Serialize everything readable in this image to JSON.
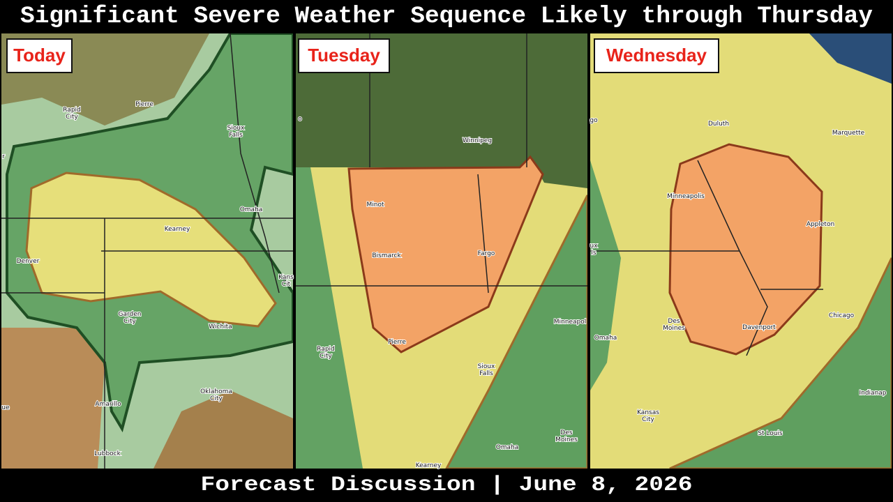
{
  "title": "Significant Severe Weather Sequence Likely through Thursday",
  "footer": "Forecast Discussion | June 8, 2026",
  "panels": [
    {
      "label": "Today",
      "cities": [
        [
          "Pierre"
        ],
        [
          "Rapid",
          "City"
        ],
        [
          "Sioux",
          "Falls"
        ],
        [
          "Omaha"
        ],
        [
          "Kearney"
        ],
        [
          "Denver"
        ],
        [
          "Kans",
          "Cit"
        ],
        [
          "Garden",
          "City"
        ],
        [
          "Wichita"
        ],
        [
          "Oklahoma",
          "City"
        ],
        [
          "Amarillo"
        ],
        [
          "Lubbock"
        ],
        [
          "ue"
        ],
        [
          "r"
        ]
      ]
    },
    {
      "label": "Tuesday",
      "cities": [
        [
          "o"
        ],
        [
          "Winnipeg"
        ],
        [
          "Minot"
        ],
        [
          "Bismarck"
        ],
        [
          "Fargo"
        ],
        [
          "Pierre"
        ],
        [
          "Rapid",
          "City"
        ],
        [
          "Sioux",
          "Falls"
        ],
        [
          "Minneapol"
        ],
        [
          "Omaha"
        ],
        [
          "Des",
          "Moines"
        ],
        [
          "Kearney"
        ]
      ]
    },
    {
      "label": "Wednesday",
      "cities": [
        [
          "go"
        ],
        [
          "Duluth"
        ],
        [
          "Marquette"
        ],
        [
          "Minneapolis"
        ],
        [
          "Appleton"
        ],
        [
          "ux",
          "ls"
        ],
        [
          "Des",
          "Moines"
        ],
        [
          "Davenport"
        ],
        [
          "Chicago"
        ],
        [
          "Omaha"
        ],
        [
          "Kansas",
          "City"
        ],
        [
          "St Louis"
        ],
        [
          "Indianap"
        ]
      ]
    }
  ]
}
